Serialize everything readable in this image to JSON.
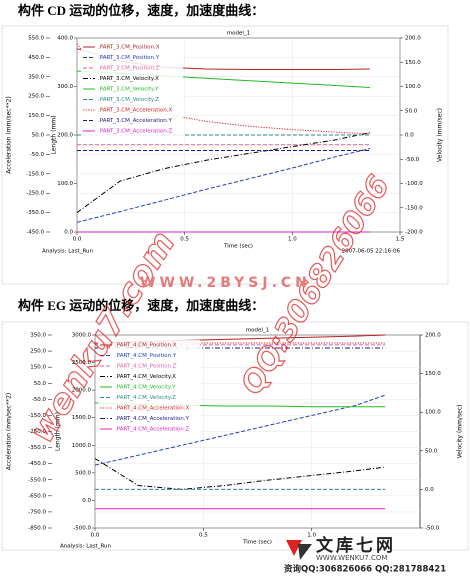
{
  "headings": [
    "构件 CD 运动的位移，速度，加速度曲线：",
    "构件 EG 运动的位移，速度，加速度曲线："
  ],
  "chart_data": [
    {
      "type": "line",
      "title": "model_1",
      "xlabel": "Time (sec)",
      "ylabel": "Acceleration (mm/sec**2)",
      "y2label": "Velocity (mm/sec)",
      "y3label": "Length (mm)",
      "analysis": "Analysis:  Last_Run",
      "timestamp": "2007-06-05 22:16:06",
      "grid": true,
      "x": [
        0,
        0.2,
        0.4,
        0.6,
        0.8,
        1.0,
        1.2,
        1.36
      ],
      "xlim": [
        0,
        1.5
      ],
      "xticks": [
        {
          "value": 0,
          "label": "0.0"
        },
        {
          "value": 0.5,
          "label": "0.5"
        },
        {
          "value": 1,
          "label": "1.0"
        },
        {
          "value": 1.5,
          "label": "1.5"
        }
      ],
      "ylim": [
        -450,
        550
      ],
      "yticks": [
        {
          "value": 550,
          "label": "550.0"
        },
        {
          "value": 450,
          "label": "450.0"
        },
        {
          "value": 350,
          "label": "350.0"
        },
        {
          "value": 250,
          "label": "250.0"
        },
        {
          "value": 150,
          "label": "150.0"
        },
        {
          "value": 50,
          "label": "50.0"
        },
        {
          "value": -50,
          "label": "-50.0"
        },
        {
          "value": -150,
          "label": "-150.0"
        },
        {
          "value": -250,
          "label": "-250.0"
        },
        {
          "value": -350,
          "label": "-350.0"
        },
        {
          "value": -450,
          "label": "-450.0"
        }
      ],
      "y2lim": [
        -200,
        200
      ],
      "y2ticks": [
        {
          "value": 200,
          "label": "200.0"
        },
        {
          "value": 150,
          "label": "150.0"
        },
        {
          "value": 100,
          "label": "100.0"
        },
        {
          "value": 50,
          "label": "50.0"
        },
        {
          "value": 0,
          "label": "0.0"
        },
        {
          "value": -50,
          "label": "-50.0"
        },
        {
          "value": -100,
          "label": "-100.0"
        },
        {
          "value": -150,
          "label": "-150.0"
        },
        {
          "value": -200,
          "label": "-200.0"
        }
      ],
      "y3lim": [
        0,
        400
      ],
      "y3ticks": [
        {
          "value": 400,
          "label": "400.0"
        },
        {
          "value": 300,
          "label": "300.0"
        },
        {
          "value": 200,
          "label": "200.0"
        },
        {
          "value": 100,
          "label": "100.0"
        },
        {
          "value": 0,
          "label": "0.0"
        }
      ],
      "series": [
        {
          "name": ".PART_3.CM_Position.X",
          "color": "#b22222",
          "dash": "solid",
          "axis": "y3",
          "values": [
            378,
            352,
            340,
            336,
            335,
            335,
            335,
            336
          ]
        },
        {
          "name": ".PART_3.CM_Position.Y",
          "color": "#1f3fbf",
          "dash": "dashed",
          "axis": "y3",
          "values": [
            20,
            42,
            65,
            88,
            110,
            132,
            155,
            172
          ]
        },
        {
          "name": ".PART_3.CM_Position.Z",
          "color": "#e060a0",
          "dash": "dashed",
          "axis": "y3",
          "values": [
            180,
            180,
            180,
            180,
            180,
            180,
            180,
            180
          ]
        },
        {
          "name": ".PART_3.CM_Velocity.X",
          "color": "#000000",
          "dash": "dashdot",
          "axis": "y2",
          "values": [
            -160,
            -95,
            -70,
            -52,
            -38,
            -24,
            -10,
            5
          ]
        },
        {
          "name": ".PART_3.CM_Velocity.Y",
          "color": "#22bb22",
          "dash": "solid",
          "axis": "y2",
          "values": [
            132,
            127,
            122,
            117,
            112,
            107,
            102,
            98
          ]
        },
        {
          "name": ".PART_3.CM_Velocity.Z",
          "color": "#2a8a8a",
          "dash": "dashed",
          "axis": "y2",
          "values": [
            0,
            0,
            0,
            0,
            0,
            0,
            0,
            0
          ]
        },
        {
          "name": ".PART_3.CM_Acceleration.X",
          "color": "#dd2222",
          "dash": "dotted",
          "values": [
            520,
            220,
            160,
            120,
            95,
            78,
            65,
            55
          ]
        },
        {
          "name": ".PART_3.CM_Acceleration.Y",
          "color": "#1a1a80",
          "dash": "dashed",
          "values": [
            -30,
            -30,
            -30,
            -30,
            -30,
            -30,
            -30,
            -30
          ]
        },
        {
          "name": ".PART_3.CM_Acceleration.Z",
          "color": "#e020c0",
          "dash": "solid",
          "values": [
            -450,
            -450,
            -450,
            -450,
            -450,
            -450,
            -450,
            -450
          ]
        }
      ]
    },
    {
      "type": "line",
      "title": "model_1",
      "xlabel": "Time (sec)",
      "ylabel": "Acceleration (mm/sec**2)",
      "y2label": "Velocity (mm/sec)",
      "y3label": "Length (mm)",
      "analysis": "Analysis:  Last_Run",
      "grid": true,
      "x": [
        0,
        0.2,
        0.4,
        0.6,
        0.8,
        1.0,
        1.2,
        1.34
      ],
      "xlim": [
        0,
        1.5
      ],
      "xticks": [
        {
          "value": 0,
          "label": "0.0"
        },
        {
          "value": 0.5,
          "label": "0.5"
        },
        {
          "value": 1,
          "label": "1.0"
        }
      ],
      "ylim": [
        -850,
        350
      ],
      "yticks": [
        {
          "value": 350,
          "label": "350.0"
        },
        {
          "value": 250,
          "label": "250.0"
        },
        {
          "value": 150,
          "label": "150.0"
        },
        {
          "value": 50,
          "label": "50.0"
        },
        {
          "value": -50,
          "label": "-50.0"
        },
        {
          "value": -150,
          "label": "-150.0"
        },
        {
          "value": -250,
          "label": "-250.0"
        },
        {
          "value": -350,
          "label": "-350.0"
        },
        {
          "value": -450,
          "label": "-450.0"
        },
        {
          "value": -550,
          "label": "-550.0"
        },
        {
          "value": -650,
          "label": "-650.0"
        },
        {
          "value": -750,
          "label": "-750.0"
        },
        {
          "value": -850,
          "label": "-850.0"
        }
      ],
      "y2lim": [
        -50,
        200
      ],
      "y2ticks": [
        {
          "value": 200,
          "label": "200.0"
        },
        {
          "value": 150,
          "label": "150.0"
        },
        {
          "value": 100,
          "label": "100.0"
        },
        {
          "value": 50,
          "label": "50.0"
        },
        {
          "value": 0,
          "label": "0.0"
        },
        {
          "value": -50,
          "label": "-50.0"
        }
      ],
      "y3lim": [
        -500,
        3000
      ],
      "y3ticks": [
        {
          "value": 3000,
          "label": "3000.0"
        },
        {
          "value": 2500,
          "label": "2500.0"
        },
        {
          "value": 2000,
          "label": "2000.0"
        },
        {
          "value": 1500,
          "label": "1500.0"
        },
        {
          "value": 1000,
          "label": "1000.0"
        },
        {
          "value": 500,
          "label": "500.0"
        },
        {
          "value": 0,
          "label": "0.0"
        },
        {
          "value": -500,
          "label": "-500.0"
        }
      ],
      "series": [
        {
          "name": ".PART_4.CM_Position.X",
          "color": "#b22222",
          "dash": "solid",
          "axis": "y3",
          "values": [
            2850,
            2880,
            2900,
            2920,
            2940,
            2960,
            2980,
            3000
          ]
        },
        {
          "name": ".PART_4.CM_Position.Y",
          "color": "#1f3fbf",
          "dash": "dashed",
          "axis": "y3",
          "values": [
            640,
            820,
            1000,
            1180,
            1360,
            1540,
            1720,
            1910
          ]
        },
        {
          "name": ".PART_4.CM_Position.Z",
          "color": "#e060a0",
          "dash": "dashed",
          "axis": "y3",
          "values": [
            2820,
            2820,
            2820,
            2820,
            2820,
            2820,
            2820,
            2820
          ]
        },
        {
          "name": ".PART_4.CM_Velocity.X",
          "color": "#000000",
          "dash": "dashdot",
          "axis": "y2",
          "values": [
            40,
            5,
            0,
            5,
            12,
            18,
            24,
            29
          ]
        },
        {
          "name": ".PART_4.CM_Velocity.Y",
          "color": "#22bb22",
          "dash": "solid",
          "axis": "y2",
          "values": [
            112,
            110,
            109,
            108,
            108,
            107,
            107,
            107
          ]
        },
        {
          "name": ".PART_4.CM_Velocity.Z",
          "color": "#2a8a8a",
          "dash": "dashed",
          "axis": "y2",
          "values": [
            0,
            0,
            0,
            0,
            0,
            0,
            0,
            0
          ]
        },
        {
          "name": ".PART_4.CM_Acceleration.X",
          "color": "#dd2222",
          "dash": "dotted",
          "values": [
            300,
            300,
            300,
            300,
            300,
            300,
            300,
            300
          ]
        },
        {
          "name": ".PART_4.CM_Acceleration.Y",
          "color": "#1a1a80",
          "dash": "dashdot",
          "values": [
            269,
            269,
            269,
            269,
            269,
            269,
            269,
            269
          ]
        },
        {
          "name": ".PART_4.CM_Acceleration.Z",
          "color": "#e020c0",
          "dash": "solid",
          "values": [
            -730,
            -730,
            -730,
            -730,
            -730,
            -730,
            -730,
            -730
          ]
        }
      ]
    }
  ],
  "watermarks": {
    "site": "wenku7.com",
    "qq": "QQ:306826066",
    "url": "WWW.2BYSJ.CN"
  },
  "footer": {
    "logo": "文库七网",
    "url": "WWW.WENKU7.COM",
    "contact": "资询QQ:306826066 QQ:281788421"
  }
}
